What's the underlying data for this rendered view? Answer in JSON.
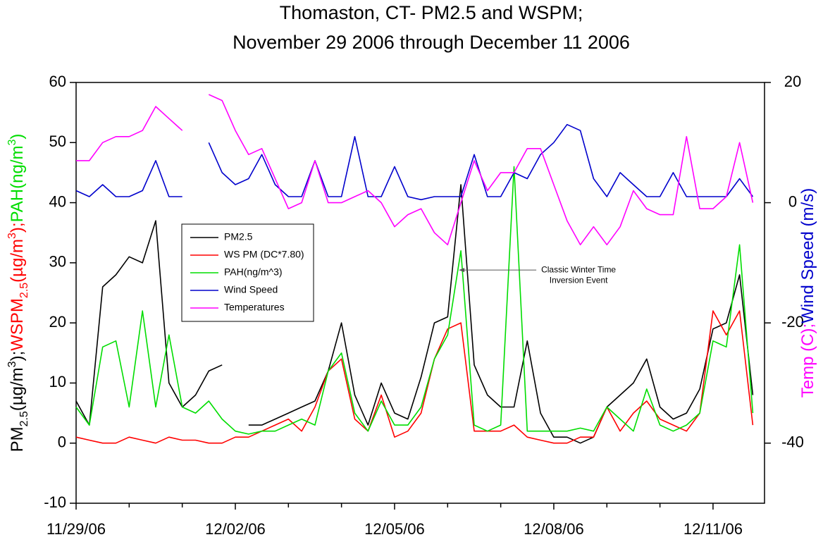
{
  "chart_data": {
    "type": "line",
    "title": [
      "Thomaston, CT- PM2.5 and WSPM;",
      "November 29 2006 through December 11 2006"
    ],
    "x": [
      0,
      0.25,
      0.5,
      0.75,
      1,
      1.25,
      1.5,
      1.75,
      2,
      2.25,
      2.5,
      2.75,
      3,
      3.25,
      3.5,
      3.75,
      4,
      4.25,
      4.5,
      4.75,
      5,
      5.25,
      5.5,
      5.75,
      6,
      6.25,
      6.5,
      6.75,
      7,
      7.25,
      7.5,
      7.75,
      8,
      8.25,
      8.5,
      8.75,
      9,
      9.25,
      9.5,
      9.75,
      10,
      10.25,
      10.5,
      10.75,
      11,
      11.25,
      11.5,
      11.75,
      12,
      12.25,
      12.5,
      12.75
    ],
    "xlim": [
      0,
      12.97
    ],
    "xticks": [
      {
        "value": 0,
        "label": "11/29/06"
      },
      {
        "value": 3,
        "label": "12/02/06"
      },
      {
        "value": 6,
        "label": "12/05/06"
      },
      {
        "value": 9,
        "label": "12/08/06"
      },
      {
        "value": 12,
        "label": "12/11/06"
      }
    ],
    "xminorticks": [
      1,
      2,
      4,
      5,
      7,
      8,
      10,
      11
    ],
    "ylim": [
      -10,
      60
    ],
    "yticks": [
      -10,
      0,
      10,
      20,
      30,
      40,
      50,
      60
    ],
    "y2lim": [
      -50,
      20
    ],
    "y2ticks": [
      -40,
      -20,
      0,
      20
    ],
    "ylabel": [
      {
        "text": "PM",
        "color": "#000000"
      },
      {
        "text": "2.5",
        "color": "#000000",
        "script": "sub"
      },
      {
        "text": "(µg/m",
        "color": "#000000"
      },
      {
        "text": "3",
        "color": "#000000",
        "script": "super"
      },
      {
        "text": ");",
        "color": "#000000"
      },
      {
        "text": "WSPM",
        "color": "#ff0000"
      },
      {
        "text": "2.5",
        "color": "#ff0000",
        "script": "sub"
      },
      {
        "text": "(µg/m",
        "color": "#ff0000"
      },
      {
        "text": "3",
        "color": "#ff0000",
        "script": "super"
      },
      {
        "text": ");",
        "color": "#ff0000"
      },
      {
        "text": "PAH(ng/m",
        "color": "#00dd00"
      },
      {
        "text": "3",
        "color": "#00dd00",
        "script": "super"
      },
      {
        "text": ")",
        "color": "#00dd00"
      }
    ],
    "y2label": [
      {
        "text": "Temp (C);",
        "color": "#ff00ff"
      },
      {
        "text": "Wind Speed (m/s)",
        "color": "#0000cc"
      }
    ],
    "legend": "center-left",
    "annotation": {
      "text": [
        "Classic Winter Time",
        "Inversion Event"
      ],
      "x": 7.21,
      "y": 28.8
    },
    "series": [
      {
        "name": "PM2.5",
        "color": "#000000",
        "axis": "y",
        "values": [
          7,
          3,
          26,
          28,
          31,
          30,
          37,
          10,
          6,
          8,
          12,
          13,
          null,
          3,
          3,
          4,
          5,
          6,
          7,
          12,
          20,
          8,
          3,
          10,
          5,
          4,
          11,
          20,
          21,
          43,
          13,
          8,
          6,
          6,
          17,
          5,
          1,
          1,
          0,
          1,
          6,
          8,
          10,
          14,
          6,
          4,
          5,
          9,
          19,
          20,
          28,
          8
        ]
      },
      {
        "name": "WS PM (DC*7.80)",
        "color": "#ff0000",
        "axis": "y",
        "values": [
          1,
          0.5,
          0,
          0,
          1,
          0.5,
          0,
          1,
          0.5,
          0.5,
          0,
          0,
          1,
          1,
          2,
          3,
          4,
          2,
          6,
          12,
          14,
          4,
          2,
          8,
          1,
          2,
          5,
          14,
          19,
          20,
          2,
          2,
          2,
          3,
          1,
          0.5,
          0,
          0,
          1,
          1,
          6,
          2,
          5,
          7,
          4,
          3,
          2,
          5,
          22,
          18,
          22,
          3
        ]
      },
      {
        "name": "PAH(ng/m^3)",
        "color": "#00dd00",
        "axis": "y",
        "values": [
          6,
          3,
          16,
          17,
          6,
          22,
          6,
          18,
          6,
          5,
          7,
          4,
          2,
          1.5,
          2,
          2,
          3,
          4,
          3,
          12,
          15,
          5,
          2,
          7,
          3,
          3,
          6,
          14,
          18,
          32,
          3,
          2,
          3,
          46,
          2,
          2,
          2,
          2,
          2.5,
          2,
          6,
          4,
          2,
          9,
          3,
          2,
          3,
          5,
          17,
          16,
          33,
          5
        ]
      },
      {
        "name": "Wind Speed",
        "color": "#0000cc",
        "axis": "y2",
        "values": [
          2,
          1,
          3,
          1,
          1,
          2,
          7,
          1,
          1,
          null,
          10,
          5,
          3,
          4,
          8,
          3,
          1,
          1,
          7,
          1,
          1,
          11,
          1,
          1,
          6,
          1,
          0.5,
          1,
          1,
          1,
          8,
          1,
          1,
          5,
          4,
          8,
          10,
          13,
          12,
          4,
          1,
          5,
          3,
          1,
          1,
          5,
          1,
          1,
          1,
          1,
          4,
          1
        ]
      },
      {
        "name": "Temperatures",
        "color": "#ff00ff",
        "axis": "y2",
        "values": [
          7,
          7,
          10,
          11,
          11,
          12,
          16,
          14,
          12,
          null,
          18,
          17,
          12,
          8,
          9,
          4,
          -1,
          0,
          7,
          0,
          0,
          1,
          2,
          0,
          -4,
          -2,
          -1,
          -5,
          -7,
          0,
          7,
          2,
          5,
          5,
          9,
          9,
          3,
          -3,
          -7,
          -4,
          -7,
          -4,
          2,
          -1,
          -2,
          -2,
          11,
          -1,
          -1,
          1,
          10,
          0
        ]
      }
    ]
  }
}
